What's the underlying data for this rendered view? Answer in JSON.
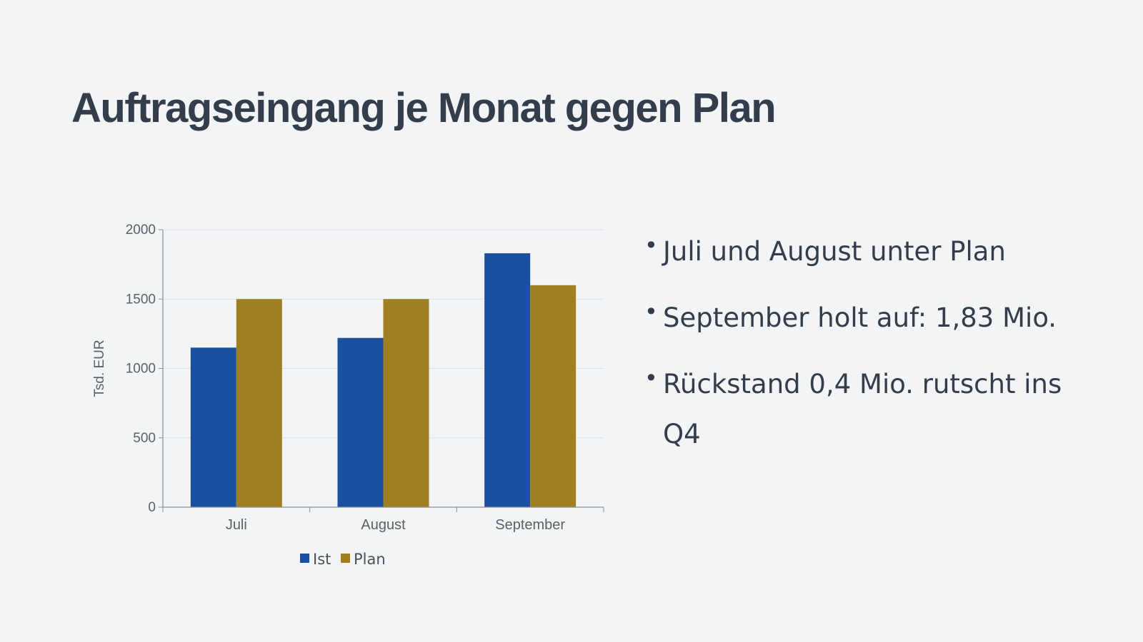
{
  "slide": {
    "title": "Auftragseingang je Monat gegen Plan"
  },
  "bullets": [
    "Juli und August unter Plan",
    "September holt auf: 1,83 Mio.",
    "Rückstand 0,4 Mio. rutscht ins Q4"
  ],
  "chart_data": {
    "type": "bar",
    "categories": [
      "Juli",
      "August",
      "September"
    ],
    "series": [
      {
        "name": "Ist",
        "values": [
          1150,
          1220,
          1830
        ],
        "color": "#1b4f9f"
      },
      {
        "name": "Plan",
        "values": [
          1500,
          1500,
          1600
        ],
        "color": "#a07f23"
      }
    ],
    "ylabel": "Tsd. EUR",
    "ylim": [
      0,
      2000
    ],
    "yticks": [
      0,
      500,
      1000,
      1500,
      2000
    ],
    "grid": true,
    "legend": "bottom"
  }
}
